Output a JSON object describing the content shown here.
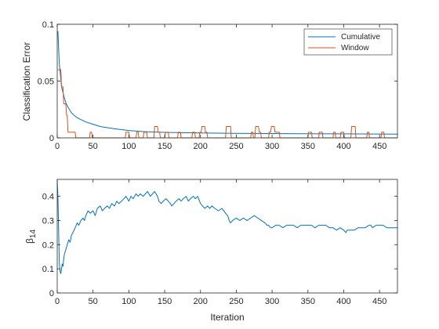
{
  "chart_data": [
    {
      "type": "line",
      "xlabel": "",
      "ylabel": "Classification Error",
      "xlim": [
        0,
        475
      ],
      "ylim": [
        0,
        0.1
      ],
      "xticks": [
        0,
        50,
        100,
        150,
        200,
        250,
        300,
        350,
        400,
        450
      ],
      "yticks": [
        0,
        0.05,
        0.1
      ],
      "ytick_labels": [
        "0",
        "0.05",
        "0.1"
      ],
      "legend": "top-right",
      "grid": false,
      "series": [
        {
          "name": "Cumulative",
          "color": "#0072BD",
          "points": [
            [
              1,
              0.094
            ],
            [
              2,
              0.078
            ],
            [
              3,
              0.065
            ],
            [
              4,
              0.058
            ],
            [
              5,
              0.052
            ],
            [
              6,
              0.045
            ],
            [
              8,
              0.04
            ],
            [
              10,
              0.035
            ],
            [
              12,
              0.031
            ],
            [
              15,
              0.027
            ],
            [
              20,
              0.022
            ],
            [
              25,
              0.019
            ],
            [
              30,
              0.017
            ],
            [
              40,
              0.014
            ],
            [
              50,
              0.012
            ],
            [
              60,
              0.01
            ],
            [
              70,
              0.009
            ],
            [
              80,
              0.008
            ],
            [
              100,
              0.0065
            ],
            [
              120,
              0.0055
            ],
            [
              150,
              0.0048
            ],
            [
              200,
              0.0043
            ],
            [
              250,
              0.004
            ],
            [
              300,
              0.0038
            ],
            [
              350,
              0.0036
            ],
            [
              400,
              0.0035
            ],
            [
              450,
              0.0034
            ],
            [
              475,
              0.0033
            ]
          ]
        },
        {
          "name": "Window",
          "color": "#D95319",
          "points": [
            [
              1,
              0.06
            ],
            [
              5,
              0.06
            ],
            [
              6,
              0.045
            ],
            [
              8,
              0.045
            ],
            [
              9,
              0.03
            ],
            [
              12,
              0.03
            ],
            [
              13,
              0.02
            ],
            [
              14,
              0.02
            ],
            [
              15,
              0.005
            ],
            [
              25,
              0.005
            ],
            [
              26,
              0
            ],
            [
              45,
              0
            ],
            [
              46,
              0.005
            ],
            [
              48,
              0.005
            ],
            [
              49,
              0
            ],
            [
              95,
              0
            ],
            [
              96,
              0.005
            ],
            [
              100,
              0.005
            ],
            [
              101,
              0
            ],
            [
              110,
              0
            ],
            [
              111,
              0.005
            ],
            [
              113,
              0.005
            ],
            [
              114,
              0
            ],
            [
              120,
              0
            ],
            [
              121,
              0.005
            ],
            [
              125,
              0.005
            ],
            [
              126,
              0
            ],
            [
              135,
              0
            ],
            [
              136,
              0.01
            ],
            [
              140,
              0.01
            ],
            [
              141,
              0.005
            ],
            [
              143,
              0.005
            ],
            [
              144,
              0
            ],
            [
              150,
              0
            ],
            [
              151,
              0.005
            ],
            [
              155,
              0.005
            ],
            [
              156,
              0
            ],
            [
              168,
              0
            ],
            [
              169,
              0.005
            ],
            [
              172,
              0.005
            ],
            [
              173,
              0
            ],
            [
              188,
              0
            ],
            [
              189,
              0.005
            ],
            [
              192,
              0.005
            ],
            [
              193,
              0
            ],
            [
              198,
              0
            ],
            [
              199,
              0.005
            ],
            [
              201,
              0.005
            ],
            [
              202,
              0.01
            ],
            [
              206,
              0.01
            ],
            [
              207,
              0.005
            ],
            [
              209,
              0.005
            ],
            [
              210,
              0
            ],
            [
              235,
              0
            ],
            [
              236,
              0.01
            ],
            [
              242,
              0.01
            ],
            [
              243,
              0
            ],
            [
              270,
              0
            ],
            [
              271,
              0.005
            ],
            [
              273,
              0.005
            ],
            [
              274,
              0
            ],
            [
              276,
              0
            ],
            [
              277,
              0.01
            ],
            [
              281,
              0.01
            ],
            [
              282,
              0.005
            ],
            [
              284,
              0.005
            ],
            [
              285,
              0
            ],
            [
              295,
              0
            ],
            [
              296,
              0.005
            ],
            [
              298,
              0.005
            ],
            [
              299,
              0.01
            ],
            [
              303,
              0.01
            ],
            [
              304,
              0.005
            ],
            [
              310,
              0.005
            ],
            [
              311,
              0
            ],
            [
              350,
              0
            ],
            [
              351,
              0.005
            ],
            [
              355,
              0.005
            ],
            [
              356,
              0
            ],
            [
              365,
              0
            ],
            [
              366,
              0.005
            ],
            [
              370,
              0.005
            ],
            [
              371,
              0
            ],
            [
              385,
              0
            ],
            [
              386,
              0.005
            ],
            [
              388,
              0.005
            ],
            [
              389,
              0
            ],
            [
              395,
              0
            ],
            [
              396,
              0.005
            ],
            [
              400,
              0.005
            ],
            [
              401,
              0
            ],
            [
              410,
              0
            ],
            [
              411,
              0.01
            ],
            [
              416,
              0.01
            ],
            [
              417,
              0
            ],
            [
              432,
              0
            ],
            [
              433,
              0.005
            ],
            [
              435,
              0.005
            ],
            [
              436,
              0
            ],
            [
              452,
              0
            ],
            [
              453,
              0.005
            ],
            [
              456,
              0.005
            ],
            [
              457,
              0
            ],
            [
              475,
              0
            ]
          ]
        }
      ]
    },
    {
      "type": "line",
      "xlabel": "Iteration",
      "ylabel": "β",
      "ylabel_subscript": "14",
      "xlim": [
        0,
        475
      ],
      "ylim": [
        0,
        0.47
      ],
      "xticks": [
        0,
        50,
        100,
        150,
        200,
        250,
        300,
        350,
        400,
        450
      ],
      "yticks": [
        0,
        0.1,
        0.2,
        0.3,
        0.4
      ],
      "ytick_labels": [
        "0",
        "0.1",
        "0.2",
        "0.3",
        "0.4"
      ],
      "grid": false,
      "series": [
        {
          "color": "#0072BD",
          "points": [
            [
              0,
              0.46
            ],
            [
              1,
              0.4
            ],
            [
              2,
              0.25
            ],
            [
              3,
              0.12
            ],
            [
              4,
              0.09
            ],
            [
              5,
              0.08
            ],
            [
              6,
              0.1
            ],
            [
              7,
              0.12
            ],
            [
              8,
              0.11
            ],
            [
              9,
              0.14
            ],
            [
              10,
              0.16
            ],
            [
              12,
              0.18
            ],
            [
              14,
              0.2
            ],
            [
              16,
              0.22
            ],
            [
              18,
              0.21
            ],
            [
              20,
              0.24
            ],
            [
              22,
              0.25
            ],
            [
              25,
              0.27
            ],
            [
              28,
              0.29
            ],
            [
              30,
              0.28
            ],
            [
              33,
              0.3
            ],
            [
              36,
              0.31
            ],
            [
              38,
              0.3
            ],
            [
              40,
              0.32
            ],
            [
              43,
              0.34
            ],
            [
              46,
              0.33
            ],
            [
              50,
              0.34
            ],
            [
              53,
              0.32
            ],
            [
              56,
              0.35
            ],
            [
              60,
              0.36
            ],
            [
              63,
              0.34
            ],
            [
              66,
              0.35
            ],
            [
              70,
              0.36
            ],
            [
              73,
              0.35
            ],
            [
              76,
              0.37
            ],
            [
              80,
              0.36
            ],
            [
              83,
              0.38
            ],
            [
              86,
              0.37
            ],
            [
              90,
              0.38
            ],
            [
              93,
              0.39
            ],
            [
              96,
              0.4
            ],
            [
              100,
              0.38
            ],
            [
              103,
              0.4
            ],
            [
              106,
              0.39
            ],
            [
              110,
              0.41
            ],
            [
              113,
              0.4
            ],
            [
              116,
              0.41
            ],
            [
              120,
              0.4
            ],
            [
              123,
              0.41
            ],
            [
              126,
              0.42
            ],
            [
              130,
              0.4
            ],
            [
              133,
              0.41
            ],
            [
              136,
              0.42
            ],
            [
              140,
              0.4
            ],
            [
              142,
              0.38
            ],
            [
              145,
              0.37
            ],
            [
              148,
              0.38
            ],
            [
              152,
              0.39
            ],
            [
              155,
              0.38
            ],
            [
              158,
              0.37
            ],
            [
              160,
              0.36
            ],
            [
              163,
              0.37
            ],
            [
              166,
              0.38
            ],
            [
              170,
              0.39
            ],
            [
              173,
              0.38
            ],
            [
              176,
              0.39
            ],
            [
              180,
              0.4
            ],
            [
              183,
              0.38
            ],
            [
              186,
              0.39
            ],
            [
              190,
              0.4
            ],
            [
              193,
              0.39
            ],
            [
              196,
              0.4
            ],
            [
              200,
              0.37
            ],
            [
              203,
              0.36
            ],
            [
              206,
              0.35
            ],
            [
              210,
              0.36
            ],
            [
              213,
              0.35
            ],
            [
              216,
              0.36
            ],
            [
              220,
              0.35
            ],
            [
              225,
              0.34
            ],
            [
              230,
              0.35
            ],
            [
              235,
              0.33
            ],
            [
              238,
              0.32
            ],
            [
              240,
              0.3
            ],
            [
              242,
              0.29
            ],
            [
              245,
              0.3
            ],
            [
              250,
              0.31
            ],
            [
              255,
              0.3
            ],
            [
              260,
              0.31
            ],
            [
              265,
              0.3
            ],
            [
              270,
              0.31
            ],
            [
              275,
              0.32
            ],
            [
              280,
              0.31
            ],
            [
              285,
              0.3
            ],
            [
              290,
              0.29
            ],
            [
              293,
              0.28
            ],
            [
              295,
              0.28
            ],
            [
              298,
              0.27
            ],
            [
              300,
              0.27
            ],
            [
              305,
              0.28
            ],
            [
              310,
              0.28
            ],
            [
              315,
              0.27
            ],
            [
              320,
              0.28
            ],
            [
              325,
              0.28
            ],
            [
              330,
              0.28
            ],
            [
              335,
              0.27
            ],
            [
              340,
              0.28
            ],
            [
              345,
              0.28
            ],
            [
              350,
              0.28
            ],
            [
              355,
              0.28
            ],
            [
              360,
              0.27
            ],
            [
              365,
              0.28
            ],
            [
              370,
              0.28
            ],
            [
              375,
              0.28
            ],
            [
              380,
              0.27
            ],
            [
              385,
              0.27
            ],
            [
              390,
              0.26
            ],
            [
              395,
              0.27
            ],
            [
              400,
              0.26
            ],
            [
              403,
              0.25
            ],
            [
              405,
              0.26
            ],
            [
              410,
              0.26
            ],
            [
              415,
              0.26
            ],
            [
              420,
              0.27
            ],
            [
              425,
              0.27
            ],
            [
              430,
              0.27
            ],
            [
              435,
              0.28
            ],
            [
              438,
              0.28
            ],
            [
              440,
              0.27
            ],
            [
              445,
              0.28
            ],
            [
              450,
              0.28
            ],
            [
              455,
              0.28
            ],
            [
              460,
              0.27
            ],
            [
              465,
              0.27
            ],
            [
              470,
              0.27
            ],
            [
              475,
              0.27
            ]
          ]
        }
      ]
    }
  ]
}
